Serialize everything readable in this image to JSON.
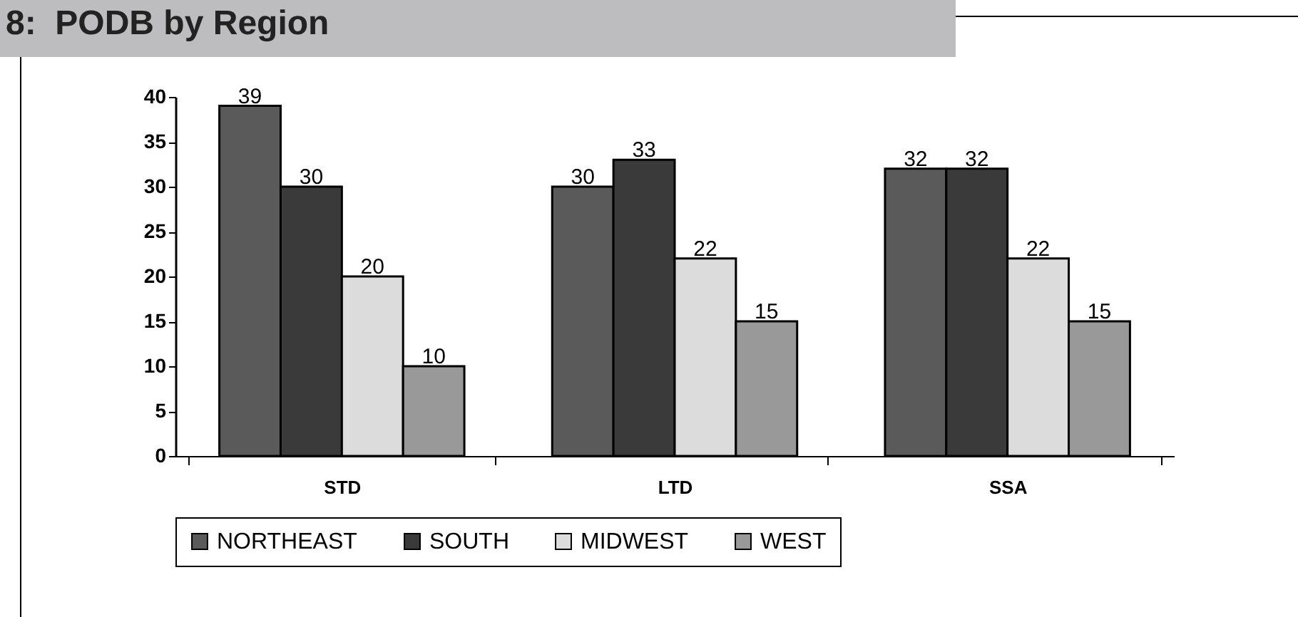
{
  "chart_data": {
    "type": "bar",
    "title": "8:  PODB by Region",
    "categories": [
      "STD",
      "LTD",
      "SSA"
    ],
    "series": [
      {
        "name": "NORTHEAST",
        "color": "#5a5a5a",
        "values": [
          39,
          30,
          32
        ]
      },
      {
        "name": "SOUTH",
        "color": "#3a3a3a",
        "values": [
          30,
          33,
          32
        ]
      },
      {
        "name": "MIDWEST",
        "color": "#dcdcdc",
        "values": [
          20,
          22,
          22
        ]
      },
      {
        "name": "WEST",
        "color": "#999999",
        "values": [
          10,
          15,
          15
        ]
      }
    ],
    "ylim": [
      0,
      40
    ],
    "yticks": [
      0,
      5,
      10,
      15,
      20,
      25,
      30,
      35,
      40
    ],
    "data_labels": true,
    "grid": false,
    "legend": "bottom"
  }
}
